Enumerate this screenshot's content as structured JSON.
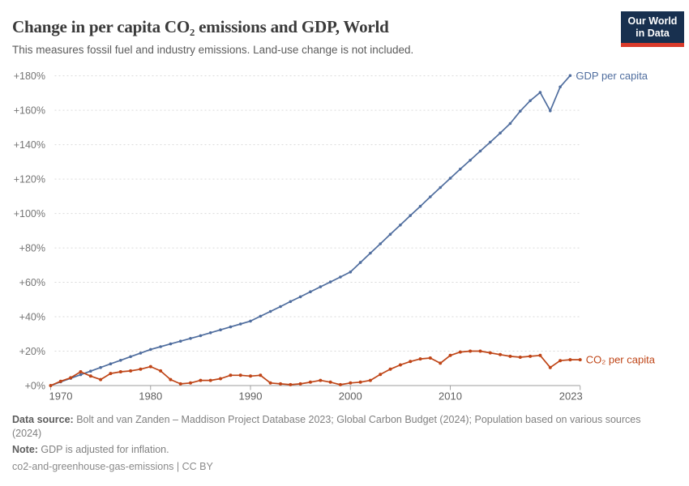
{
  "chart_data": {
    "type": "line",
    "title": "Change in per capita CO₂ emissions and GDP, World",
    "subtitle": "This measures fossil fuel and industry emissions. Land-use change is not included.",
    "x_start_year": 1970,
    "x_end_year": 2023,
    "x_ticks": [
      1970,
      1980,
      1990,
      2000,
      2010,
      2023
    ],
    "ylim": [
      0,
      180
    ],
    "y_tick_step": 20,
    "y_tick_prefix": "+",
    "y_tick_suffix": "%",
    "grid": "horizontal-dashed",
    "legend_position": "line-end-labels",
    "series": [
      {
        "id": "gdp",
        "name": "GDP per capita",
        "color": "#4f6d9e",
        "start_year": 1970,
        "end_year": 2022,
        "dot_radius": 1.8,
        "values": [
          0,
          2.1,
          4.2,
          6.3,
          8.4,
          10.5,
          12.6,
          14.7,
          16.8,
          18.9,
          21,
          22.6,
          24.2,
          25.8,
          27.4,
          29,
          30.7,
          32.4,
          34.1,
          35.8,
          37.5,
          40.3,
          43.1,
          45.9,
          48.8,
          51.6,
          54.5,
          57.4,
          60.2,
          63.1,
          66,
          71.5,
          77,
          82.4,
          87.9,
          93.3,
          98.8,
          104.2,
          109.7,
          115.1,
          120.5,
          125.8,
          131,
          136.3,
          141.5,
          146.8,
          152.3,
          159.5,
          165.6,
          170.4,
          159.7,
          173.6,
          180.2
        ]
      },
      {
        "id": "co2",
        "name": "CO₂ per capita",
        "color": "#bf4517",
        "start_year": 1970,
        "end_year": 2023,
        "dot_radius": 2,
        "values": [
          0,
          2.5,
          4.5,
          8,
          5.5,
          3.5,
          7,
          8,
          8.5,
          9.5,
          11,
          8.5,
          3.5,
          1,
          1.5,
          3,
          3,
          4,
          6,
          6,
          5.5,
          6,
          1.5,
          1,
          0.5,
          1,
          2,
          3,
          2,
          0.5,
          1.5,
          2,
          3,
          6.5,
          9.5,
          12,
          14,
          15.5,
          16,
          13,
          17.5,
          19.5,
          20,
          20,
          19,
          18,
          17,
          16.5,
          17,
          17.5,
          10.5,
          14.5,
          15,
          15
        ]
      }
    ]
  },
  "logo": {
    "line1": "Our World",
    "line2": "in Data",
    "bg_color": "#18304f",
    "bar_color": "#d93a2a"
  },
  "footer": {
    "source_label": "Data source:",
    "source_text": " Bolt and van Zanden – Maddison Project Database 2023; Global Carbon Budget (2024); Population based on various sources (2024)",
    "note_label": "Note:",
    "note_text": " GDP is adjusted for inflation.",
    "permalink": "co2-and-greenhouse-gas-emissions | CC BY"
  }
}
